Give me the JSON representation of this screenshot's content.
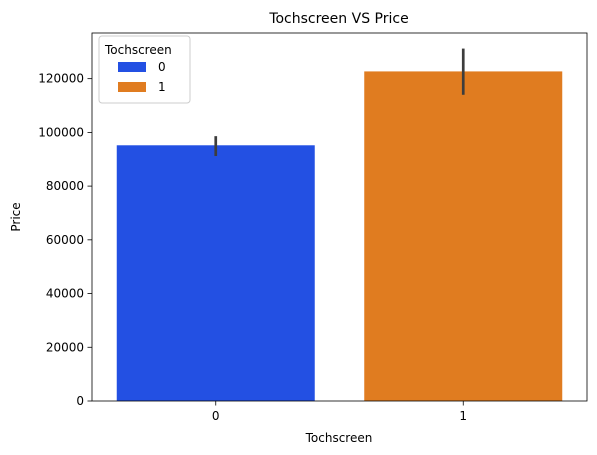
{
  "chart_data": {
    "type": "bar",
    "title": "Tochscreen VS Price",
    "xlabel": "Tochscreen",
    "ylabel": "Price",
    "categories": [
      "0",
      "1"
    ],
    "values": [
      95200,
      122700
    ],
    "error_bars": [
      [
        91200,
        98600
      ],
      [
        114000,
        131200
      ]
    ],
    "colors": [
      "#2350e3",
      "#e07c20"
    ],
    "ylim": [
      0,
      137000
    ],
    "yticks": [
      0,
      20000,
      40000,
      60000,
      80000,
      100000,
      120000
    ],
    "grid": false,
    "legend": {
      "title": "Tochscreen",
      "placement": "top-left",
      "entries": [
        {
          "label": "0",
          "color": "#2350e3"
        },
        {
          "label": "1",
          "color": "#e07c20"
        }
      ]
    }
  }
}
